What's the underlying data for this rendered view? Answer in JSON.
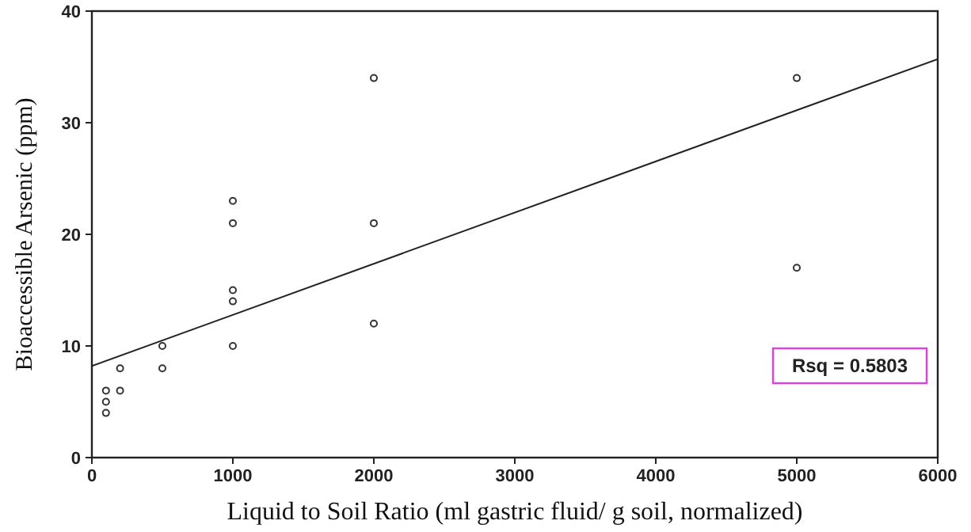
{
  "chart_data": {
    "type": "scatter",
    "xlabel": "Liquid to Soil Ratio (ml gastric fluid/ g soil, normalized)",
    "ylabel": "Bioaccessible Arsenic (ppm)",
    "xlim": [
      0,
      6000
    ],
    "xticks": [
      0,
      1000,
      2000,
      3000,
      4000,
      5000,
      6000
    ],
    "ylim": [
      0,
      40
    ],
    "yticks": [
      0,
      10,
      20,
      30,
      40
    ],
    "grid": false,
    "series": [
      {
        "marker": "circle",
        "color": "#333333",
        "x": [
          100,
          100,
          100,
          200,
          200,
          500,
          500,
          1000,
          1000,
          1000,
          1000,
          1000,
          2000,
          2000,
          2000,
          5000,
          5000
        ],
        "values": [
          6,
          5,
          4,
          8,
          6,
          10,
          8,
          23,
          21,
          15,
          14,
          10,
          34,
          21,
          12,
          34,
          17
        ]
      },
      {
        "type": "line",
        "marker": "none",
        "color": "#222222",
        "x": [
          0,
          6000
        ],
        "values": [
          8.2,
          35.7
        ]
      }
    ],
    "annotations": [
      "Rsq = 0.5803"
    ]
  }
}
